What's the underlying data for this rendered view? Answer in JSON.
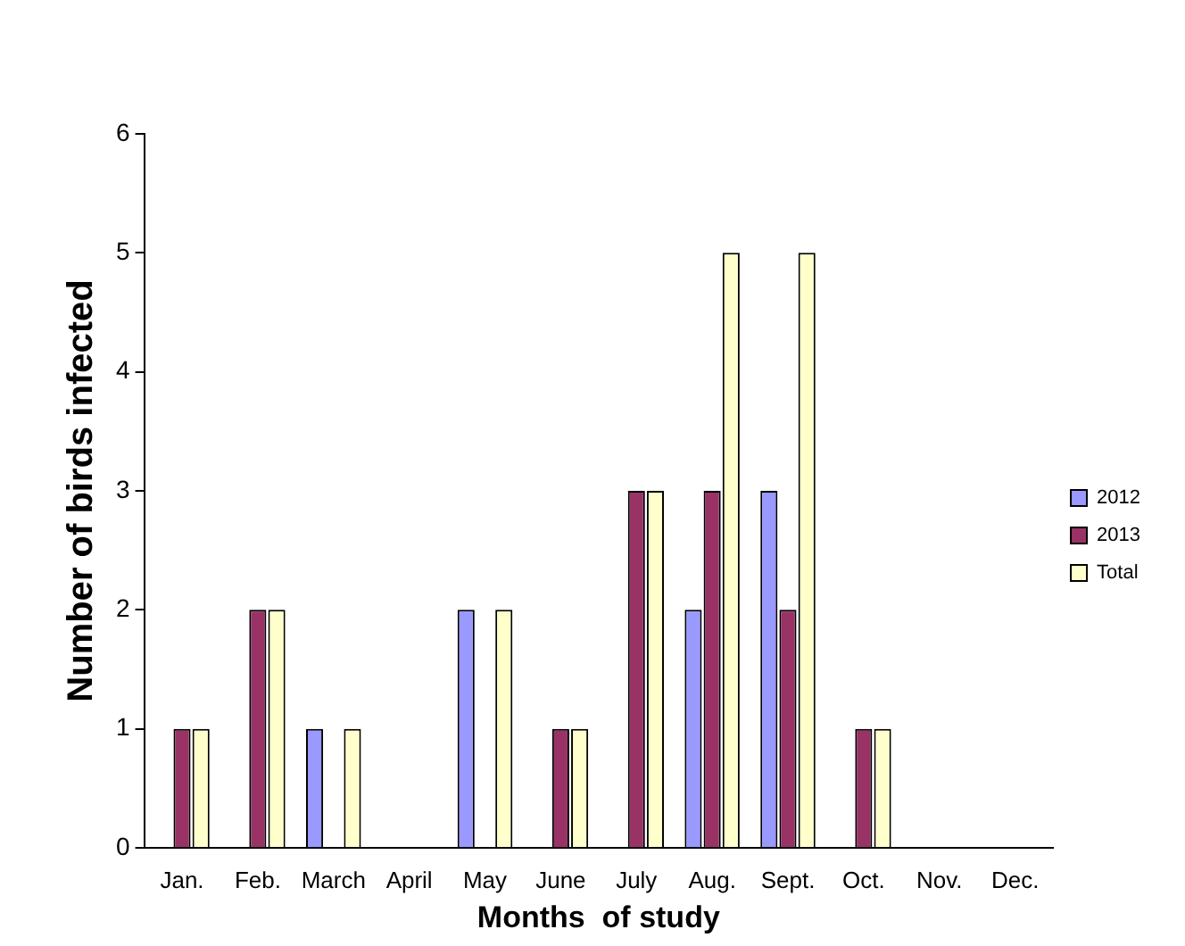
{
  "chart_data": {
    "type": "bar",
    "xlabel": "Months  of study",
    "ylabel": "Number of birds infected",
    "categories": [
      "Jan.",
      "Feb.",
      "March",
      "April",
      "May",
      "June",
      "July",
      "Aug.",
      "Sept.",
      "Oct.",
      "Nov.",
      "Dec."
    ],
    "series": [
      {
        "name": "2012",
        "color": "#9999ff",
        "values": [
          0,
          0,
          1,
          0,
          2,
          0,
          0,
          2,
          3,
          0,
          0,
          0
        ]
      },
      {
        "name": "2013",
        "color": "#993366",
        "values": [
          1,
          2,
          0,
          0,
          0,
          1,
          3,
          3,
          2,
          1,
          0,
          0
        ]
      },
      {
        "name": "Total",
        "color": "#ffffcc",
        "values": [
          1,
          2,
          1,
          0,
          2,
          1,
          3,
          5,
          5,
          1,
          0,
          0
        ]
      }
    ],
    "ylim": [
      0,
      6
    ],
    "yticks": [
      0,
      1,
      2,
      3,
      4,
      5,
      6
    ],
    "grid": false,
    "legend": "right"
  }
}
